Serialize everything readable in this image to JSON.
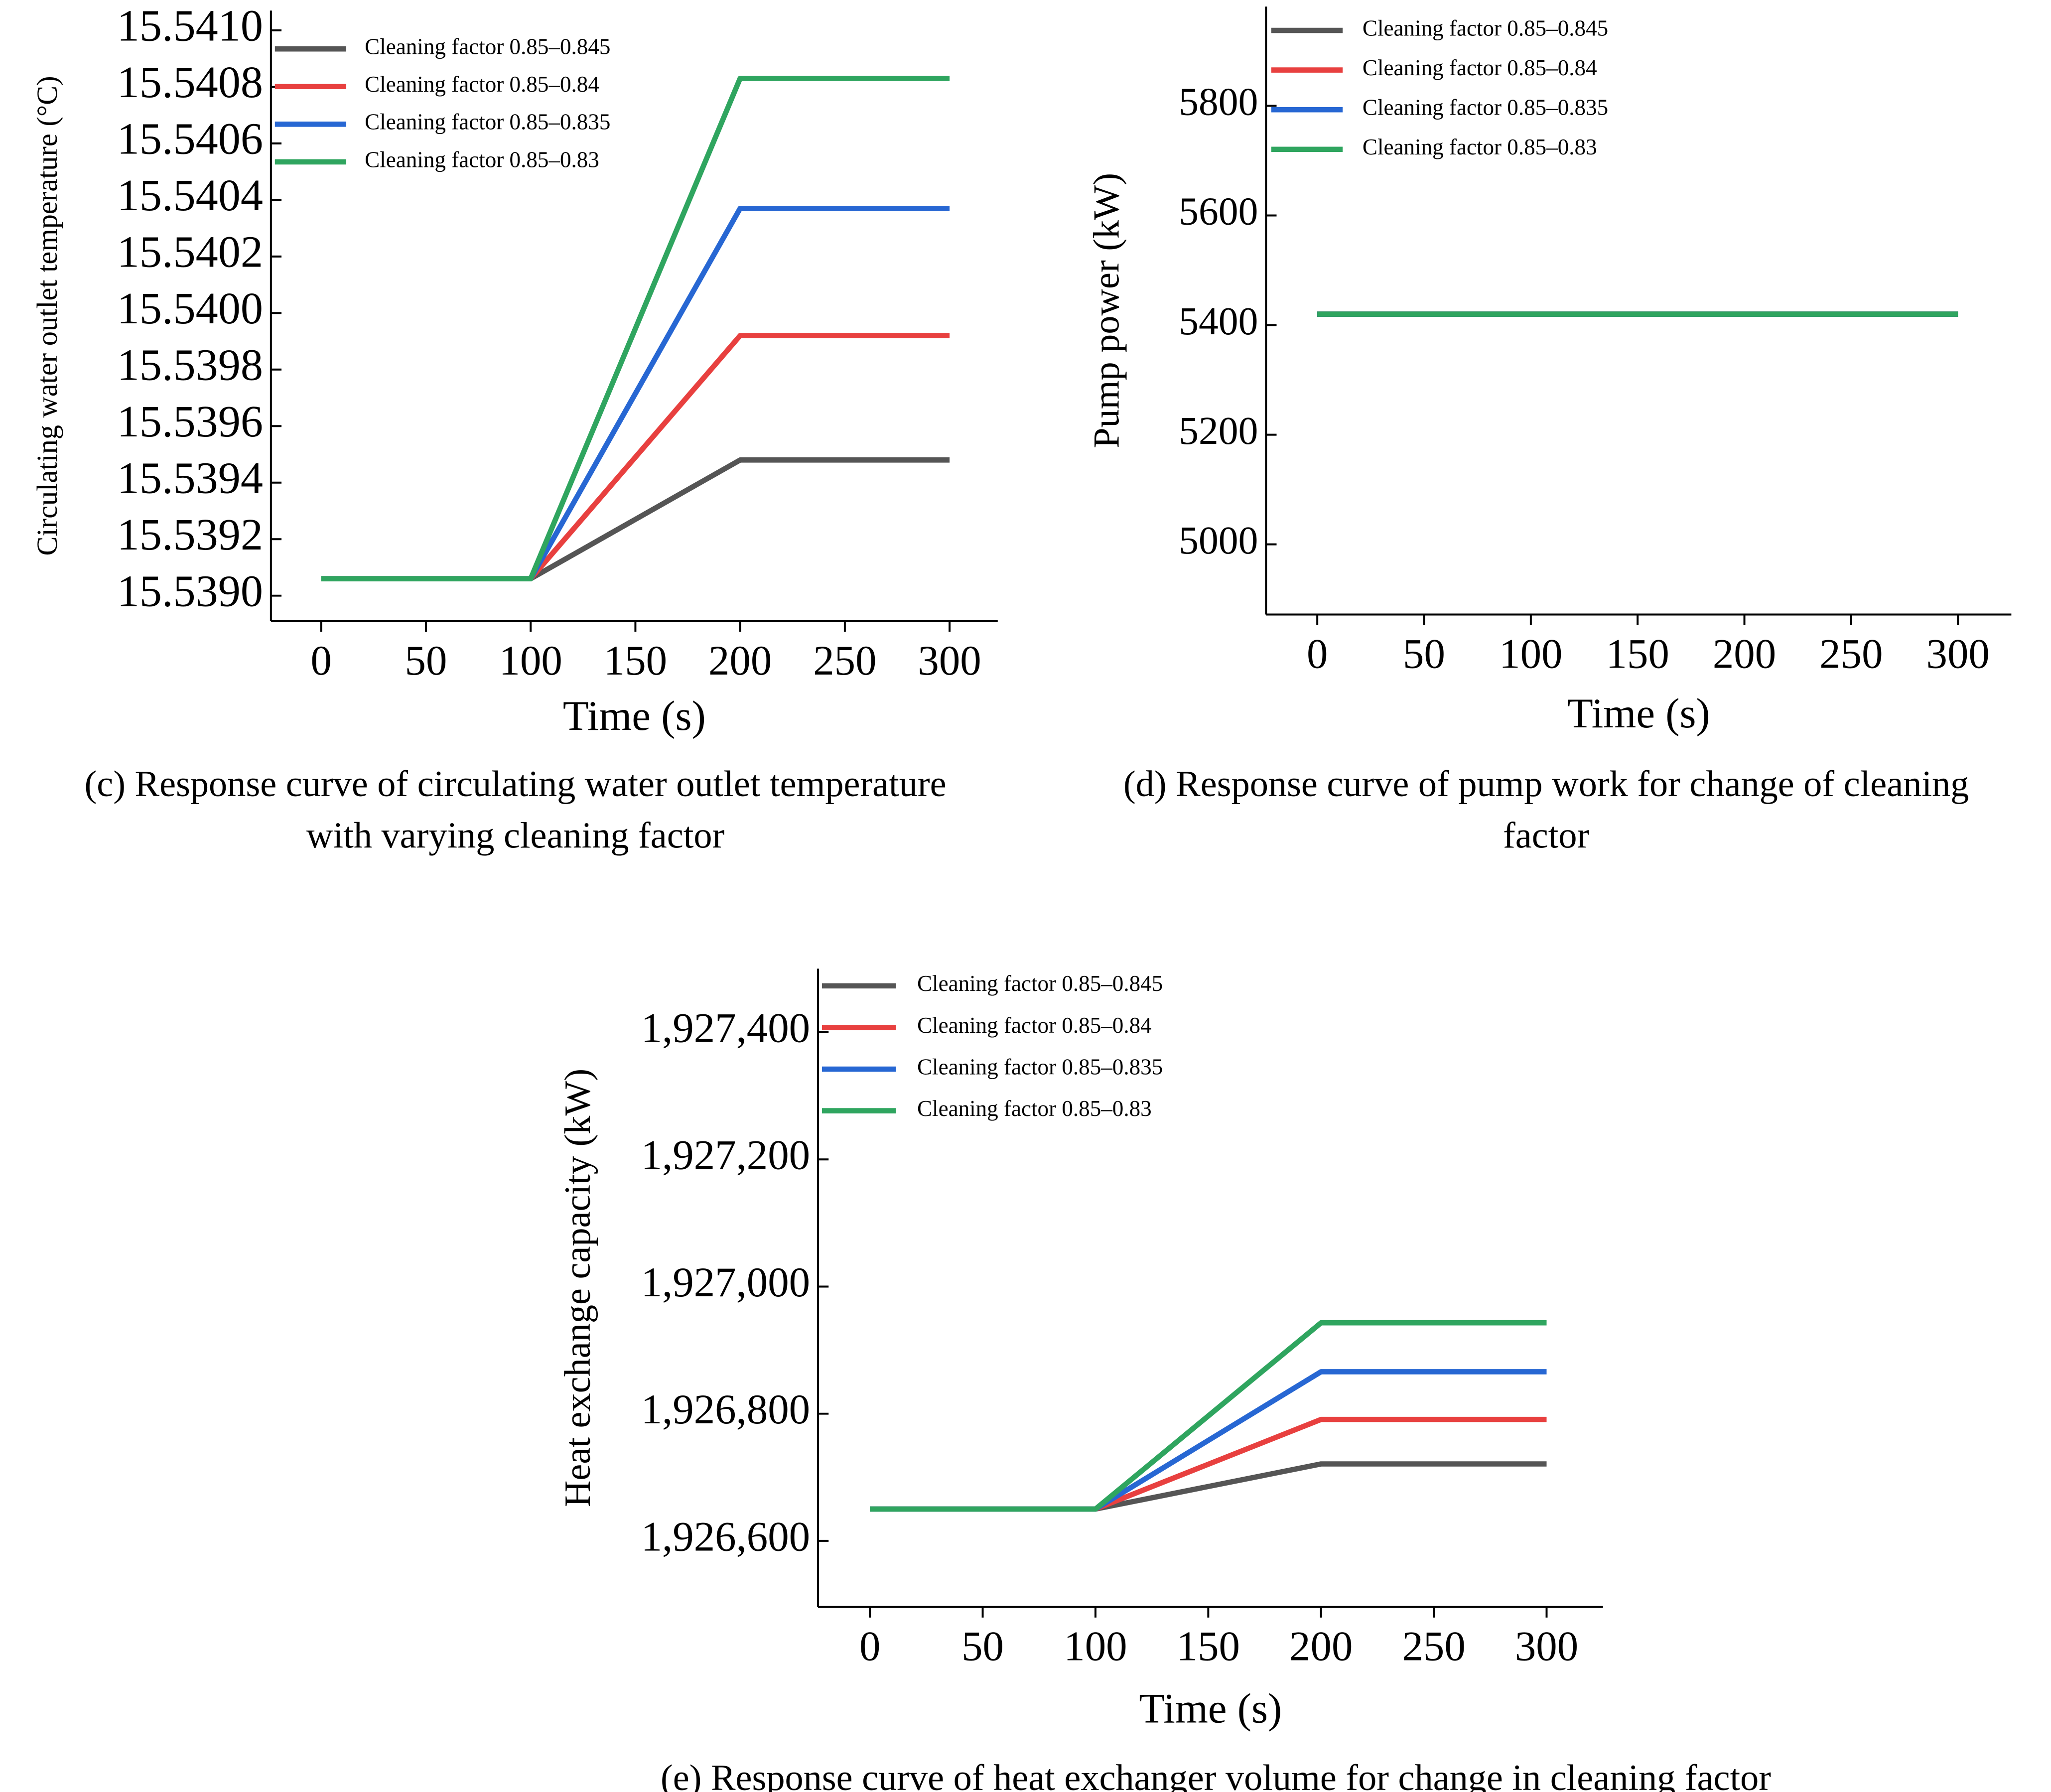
{
  "chart_data": [
    {
      "type": "line",
      "x_label": "Time (s)",
      "y_label": "Circulating water outlet temperature (°C)",
      "caption": [
        "(c) Response curve of circulating water outlet temperature",
        "with varying cleaning factor"
      ],
      "x": [
        0,
        100,
        200,
        300
      ],
      "xlim": [
        -24,
        323
      ],
      "xticks": [
        0,
        50,
        100,
        150,
        200,
        250,
        300
      ],
      "ylim": [
        15.53891,
        15.54107
      ],
      "yticks": [
        {
          "value": 15.539,
          "label": "15.5390"
        },
        {
          "value": 15.5392,
          "label": "15.5392"
        },
        {
          "value": 15.5394,
          "label": "15.5394"
        },
        {
          "value": 15.5396,
          "label": "15.5396"
        },
        {
          "value": 15.5398,
          "label": "15.5398"
        },
        {
          "value": 15.54,
          "label": "15.5400"
        },
        {
          "value": 15.5402,
          "label": "15.5402"
        },
        {
          "value": 15.5404,
          "label": "15.5404"
        },
        {
          "value": 15.5406,
          "label": "15.5406"
        },
        {
          "value": 15.5408,
          "label": "15.5408"
        },
        {
          "value": 15.541,
          "label": "15.5410"
        }
      ],
      "series": [
        {
          "name": "Cleaning factor 0.85–0.845",
          "color": "#555555",
          "values": [
            15.53906,
            15.53906,
            15.53948,
            15.53948
          ]
        },
        {
          "name": "Cleaning factor 0.85–0.84",
          "color": "#e8403f",
          "values": [
            15.53906,
            15.53906,
            15.53992,
            15.53992
          ]
        },
        {
          "name": "Cleaning factor 0.85–0.835",
          "color": "#2767d3",
          "values": [
            15.53906,
            15.53906,
            15.54037,
            15.54037
          ]
        },
        {
          "name": "Cleaning factor 0.85–0.83",
          "color": "#2fa55f",
          "values": [
            15.53906,
            15.53906,
            15.54083,
            15.54083
          ]
        }
      ]
    },
    {
      "type": "line",
      "x_label": "Time (s)",
      "y_label": "Pump power (kW)",
      "caption": [
        "(d) Response curve of pump work for change of cleaning",
        "factor"
      ],
      "x": [
        0,
        100,
        200,
        300
      ],
      "xlim": [
        -24,
        325
      ],
      "xticks": [
        0,
        50,
        100,
        150,
        200,
        250,
        300
      ],
      "ylim": [
        4872,
        5981
      ],
      "yticks": [
        5000,
        5200,
        5400,
        5600,
        5800
      ],
      "series": [
        {
          "name": "Cleaning factor 0.85–0.845",
          "color": "#555555",
          "values": [
            5420,
            5420,
            5420,
            5420
          ]
        },
        {
          "name": "Cleaning factor 0.85–0.84",
          "color": "#e8403f",
          "values": [
            5420,
            5420,
            5420,
            5420
          ]
        },
        {
          "name": "Cleaning factor 0.85–0.835",
          "color": "#2767d3",
          "values": [
            5420,
            5420,
            5420,
            5420
          ]
        },
        {
          "name": "Cleaning factor 0.85–0.83",
          "color": "#2fa55f",
          "values": [
            5420,
            5420,
            5420,
            5420
          ]
        }
      ]
    },
    {
      "type": "line",
      "x_label": "Time (s)",
      "y_label": "Heat exchange capacity (kW)",
      "caption": [
        "(e) Response curve of heat exchanger volume for change in cleaning factor"
      ],
      "x": [
        0,
        100,
        200,
        300
      ],
      "xlim": [
        -23,
        325
      ],
      "xticks": [
        0,
        50,
        100,
        150,
        200,
        250,
        300
      ],
      "ylim": [
        1926496,
        1927500
      ],
      "yticks": [
        {
          "value": 1926600,
          "label": "1,926,600"
        },
        {
          "value": 1926800,
          "label": "1,926,800"
        },
        {
          "value": 1927000,
          "label": "1,927,000"
        },
        {
          "value": 1927200,
          "label": "1,927,200"
        },
        {
          "value": 1927400,
          "label": "1,927,400"
        }
      ],
      "series": [
        {
          "name": "Cleaning factor 0.85–0.845",
          "color": "#555555",
          "values": [
            1926650,
            1926650,
            1926721,
            1926721
          ]
        },
        {
          "name": "Cleaning factor 0.85–0.84",
          "color": "#e8403f",
          "values": [
            1926650,
            1926650,
            1926791,
            1926791
          ]
        },
        {
          "name": "Cleaning factor 0.85–0.835",
          "color": "#2767d3",
          "values": [
            1926650,
            1926650,
            1926866,
            1926866
          ]
        },
        {
          "name": "Cleaning factor 0.85–0.83",
          "color": "#2fa55f",
          "values": [
            1926650,
            1926650,
            1926943,
            1926943
          ]
        }
      ]
    }
  ]
}
